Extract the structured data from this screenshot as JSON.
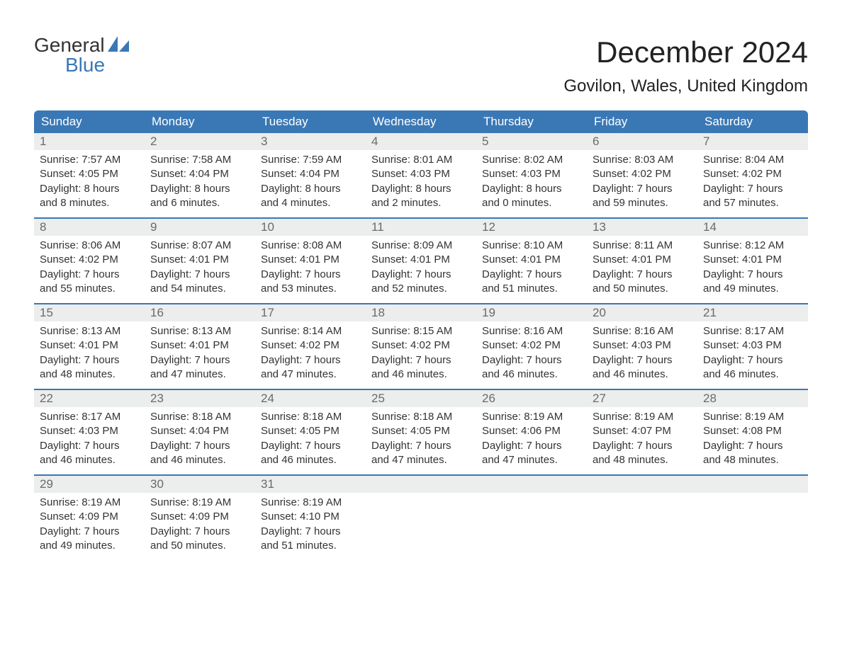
{
  "logo": {
    "word1": "General",
    "word2": "Blue"
  },
  "title": "December 2024",
  "location": "Govilon, Wales, United Kingdom",
  "colors": {
    "header_bg": "#3a78b5",
    "header_text": "#ffffff",
    "daynum_bg": "#eceded",
    "daynum_text": "#6a6a6a",
    "body_text": "#333333",
    "rule": "#3a78b5",
    "logo_blue": "#3a78b5"
  },
  "weekdays": [
    "Sunday",
    "Monday",
    "Tuesday",
    "Wednesday",
    "Thursday",
    "Friday",
    "Saturday"
  ],
  "weeks": [
    [
      {
        "n": "1",
        "sr": "7:57 AM",
        "ss": "4:05 PM",
        "dl": "8 hours and 8 minutes."
      },
      {
        "n": "2",
        "sr": "7:58 AM",
        "ss": "4:04 PM",
        "dl": "8 hours and 6 minutes."
      },
      {
        "n": "3",
        "sr": "7:59 AM",
        "ss": "4:04 PM",
        "dl": "8 hours and 4 minutes."
      },
      {
        "n": "4",
        "sr": "8:01 AM",
        "ss": "4:03 PM",
        "dl": "8 hours and 2 minutes."
      },
      {
        "n": "5",
        "sr": "8:02 AM",
        "ss": "4:03 PM",
        "dl": "8 hours and 0 minutes."
      },
      {
        "n": "6",
        "sr": "8:03 AM",
        "ss": "4:02 PM",
        "dl": "7 hours and 59 minutes."
      },
      {
        "n": "7",
        "sr": "8:04 AM",
        "ss": "4:02 PM",
        "dl": "7 hours and 57 minutes."
      }
    ],
    [
      {
        "n": "8",
        "sr": "8:06 AM",
        "ss": "4:02 PM",
        "dl": "7 hours and 55 minutes."
      },
      {
        "n": "9",
        "sr": "8:07 AM",
        "ss": "4:01 PM",
        "dl": "7 hours and 54 minutes."
      },
      {
        "n": "10",
        "sr": "8:08 AM",
        "ss": "4:01 PM",
        "dl": "7 hours and 53 minutes."
      },
      {
        "n": "11",
        "sr": "8:09 AM",
        "ss": "4:01 PM",
        "dl": "7 hours and 52 minutes."
      },
      {
        "n": "12",
        "sr": "8:10 AM",
        "ss": "4:01 PM",
        "dl": "7 hours and 51 minutes."
      },
      {
        "n": "13",
        "sr": "8:11 AM",
        "ss": "4:01 PM",
        "dl": "7 hours and 50 minutes."
      },
      {
        "n": "14",
        "sr": "8:12 AM",
        "ss": "4:01 PM",
        "dl": "7 hours and 49 minutes."
      }
    ],
    [
      {
        "n": "15",
        "sr": "8:13 AM",
        "ss": "4:01 PM",
        "dl": "7 hours and 48 minutes."
      },
      {
        "n": "16",
        "sr": "8:13 AM",
        "ss": "4:01 PM",
        "dl": "7 hours and 47 minutes."
      },
      {
        "n": "17",
        "sr": "8:14 AM",
        "ss": "4:02 PM",
        "dl": "7 hours and 47 minutes."
      },
      {
        "n": "18",
        "sr": "8:15 AM",
        "ss": "4:02 PM",
        "dl": "7 hours and 46 minutes."
      },
      {
        "n": "19",
        "sr": "8:16 AM",
        "ss": "4:02 PM",
        "dl": "7 hours and 46 minutes."
      },
      {
        "n": "20",
        "sr": "8:16 AM",
        "ss": "4:03 PM",
        "dl": "7 hours and 46 minutes."
      },
      {
        "n": "21",
        "sr": "8:17 AM",
        "ss": "4:03 PM",
        "dl": "7 hours and 46 minutes."
      }
    ],
    [
      {
        "n": "22",
        "sr": "8:17 AM",
        "ss": "4:03 PM",
        "dl": "7 hours and 46 minutes."
      },
      {
        "n": "23",
        "sr": "8:18 AM",
        "ss": "4:04 PM",
        "dl": "7 hours and 46 minutes."
      },
      {
        "n": "24",
        "sr": "8:18 AM",
        "ss": "4:05 PM",
        "dl": "7 hours and 46 minutes."
      },
      {
        "n": "25",
        "sr": "8:18 AM",
        "ss": "4:05 PM",
        "dl": "7 hours and 47 minutes."
      },
      {
        "n": "26",
        "sr": "8:19 AM",
        "ss": "4:06 PM",
        "dl": "7 hours and 47 minutes."
      },
      {
        "n": "27",
        "sr": "8:19 AM",
        "ss": "4:07 PM",
        "dl": "7 hours and 48 minutes."
      },
      {
        "n": "28",
        "sr": "8:19 AM",
        "ss": "4:08 PM",
        "dl": "7 hours and 48 minutes."
      }
    ],
    [
      {
        "n": "29",
        "sr": "8:19 AM",
        "ss": "4:09 PM",
        "dl": "7 hours and 49 minutes."
      },
      {
        "n": "30",
        "sr": "8:19 AM",
        "ss": "4:09 PM",
        "dl": "7 hours and 50 minutes."
      },
      {
        "n": "31",
        "sr": "8:19 AM",
        "ss": "4:10 PM",
        "dl": "7 hours and 51 minutes."
      },
      null,
      null,
      null,
      null
    ]
  ],
  "labels": {
    "sunrise_prefix": "Sunrise: ",
    "sunset_prefix": "Sunset: ",
    "daylight_prefix": "Daylight: "
  }
}
